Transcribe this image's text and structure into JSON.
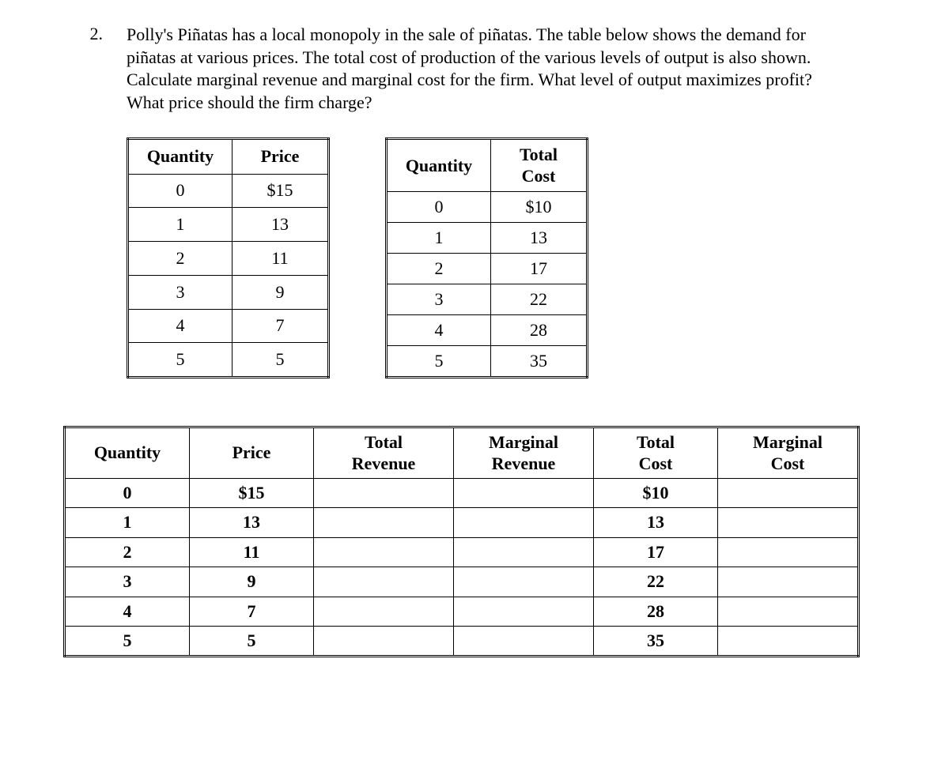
{
  "question": {
    "number": "2.",
    "text": "Polly's Piñatas has a local monopoly in the sale of piñatas.  The table below shows the demand for piñatas at various prices.  The total cost of production of the various levels of output is also shown.  Calculate marginal revenue and marginal cost for the firm.  What level of output maximizes profit?  What price should the firm charge?"
  },
  "demand_table": {
    "headers": {
      "quantity": "Quantity",
      "price": "Price"
    },
    "rows": [
      {
        "q": "0",
        "p": "$15"
      },
      {
        "q": "1",
        "p": "13"
      },
      {
        "q": "2",
        "p": "11"
      },
      {
        "q": "3",
        "p": "9"
      },
      {
        "q": "4",
        "p": "7"
      },
      {
        "q": "5",
        "p": "5"
      }
    ]
  },
  "cost_table": {
    "headers": {
      "quantity": "Quantity",
      "total_cost_l1": "Total",
      "total_cost_l2": "Cost"
    },
    "rows": [
      {
        "q": "0",
        "tc": "$10"
      },
      {
        "q": "1",
        "tc": "13"
      },
      {
        "q": "2",
        "tc": "17"
      },
      {
        "q": "3",
        "tc": "22"
      },
      {
        "q": "4",
        "tc": "28"
      },
      {
        "q": "5",
        "tc": "35"
      }
    ]
  },
  "answer_table": {
    "headers": {
      "quantity": "Quantity",
      "price": "Price",
      "tr_l1": "Total",
      "tr_l2": "Revenue",
      "mr_l1": "Marginal",
      "mr_l2": "Revenue",
      "tc_l1": "Total",
      "tc_l2": "Cost",
      "mc_l1": "Marginal",
      "mc_l2": "Cost"
    },
    "rows": [
      {
        "q": "0",
        "p": "$15",
        "tr": "",
        "mr": "",
        "tc": "$10",
        "mc": ""
      },
      {
        "q": "1",
        "p": "13",
        "tr": "",
        "mr": "",
        "tc": "13",
        "mc": ""
      },
      {
        "q": "2",
        "p": "11",
        "tr": "",
        "mr": "",
        "tc": "17",
        "mc": ""
      },
      {
        "q": "3",
        "p": "9",
        "tr": "",
        "mr": "",
        "tc": "22",
        "mc": ""
      },
      {
        "q": "4",
        "p": "7",
        "tr": "",
        "mr": "",
        "tc": "28",
        "mc": ""
      },
      {
        "q": "5",
        "p": "5",
        "tr": "",
        "mr": "",
        "tc": "35",
        "mc": ""
      }
    ]
  },
  "style": {
    "font_family": "Georgia, serif",
    "text_color": "#000000",
    "bg_color": "#ffffff",
    "border_color": "#000000"
  }
}
